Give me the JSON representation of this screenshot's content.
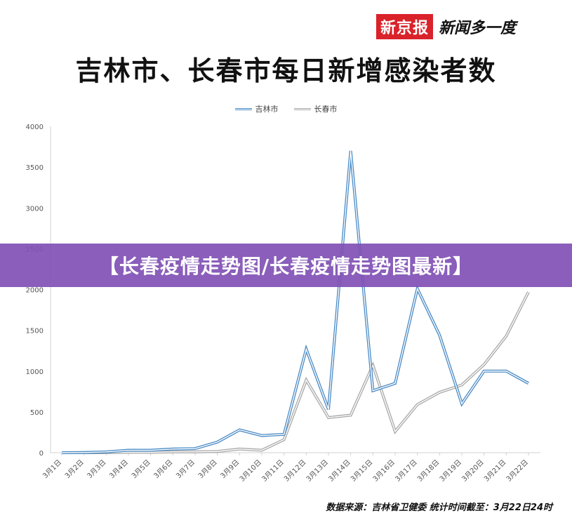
{
  "brand": {
    "name": "新京报",
    "slogan": "新闻多一度"
  },
  "banner": {
    "text": "【长春疫情走势图/长春疫情走势图最新】"
  },
  "source_note": "数据来源：吉林省卫健委   统计时间截至：3月22日24时",
  "colors": {
    "jilin": "#4a8ac4",
    "changchun": "#a8a8a8",
    "banner": "#8050b4",
    "brand": "#d9222a"
  },
  "chart_data": {
    "type": "line",
    "title": "吉林市、长春市每日新增感染者数",
    "ylim": [
      0,
      4000
    ],
    "yticks": [
      0,
      500,
      1000,
      1500,
      2000,
      2500,
      3000,
      3500,
      4000
    ],
    "grid": false,
    "legend_position": "top-center",
    "categories": [
      "3月1日",
      "3月2日",
      "3月3日",
      "3月4日",
      "3月5日",
      "3月6日",
      "3月7日",
      "3月8日",
      "3月9日",
      "3月10日",
      "3月11日",
      "3月12日",
      "3月13日",
      "3月14日",
      "3月15日",
      "3月16日",
      "3月17日",
      "3月18日",
      "3月19日",
      "3月20日",
      "3月21日",
      "3月22日"
    ],
    "series": [
      {
        "name": "吉林市",
        "color": "#4a8ac4",
        "values": [
          0,
          2,
          10,
          30,
          30,
          45,
          50,
          130,
          280,
          210,
          225,
          1270,
          530,
          3700,
          760,
          850,
          2010,
          1440,
          600,
          1000,
          1000,
          850
        ]
      },
      {
        "name": "长春市",
        "color": "#a8a8a8",
        "values": [
          0,
          0,
          0,
          5,
          5,
          10,
          10,
          15,
          45,
          30,
          160,
          890,
          430,
          460,
          1070,
          260,
          590,
          740,
          830,
          1080,
          1430,
          1970
        ]
      }
    ]
  }
}
